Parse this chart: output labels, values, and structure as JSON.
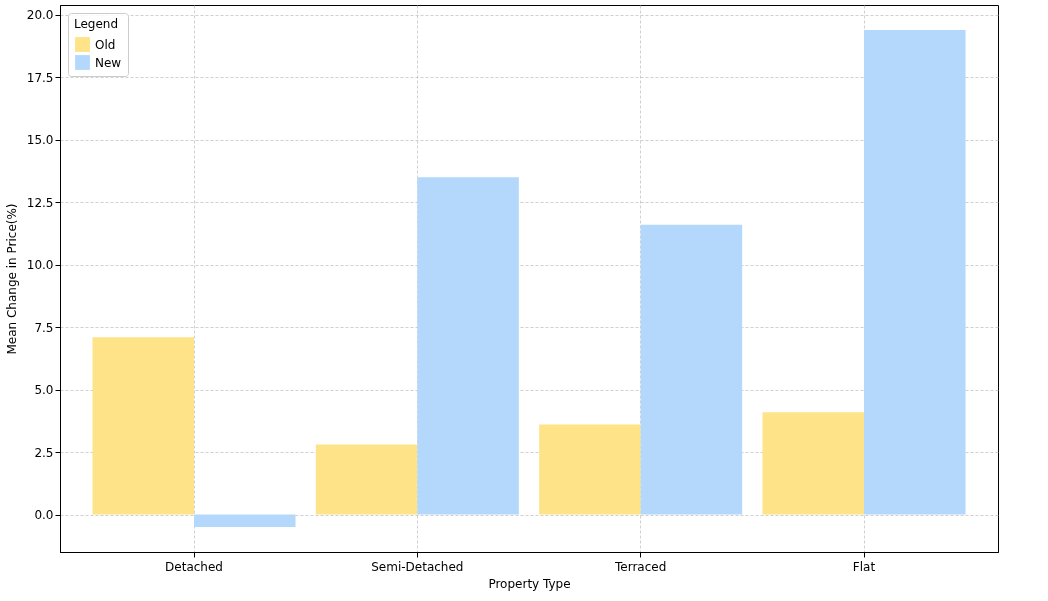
{
  "chart_data": {
    "type": "bar",
    "xlabel": "Property Type",
    "ylabel": "Mean Change in Price(%)",
    "legend_title": "Legend",
    "categories": [
      "Detached",
      "Semi-Detached",
      "Terraced",
      "Flat"
    ],
    "series": [
      {
        "name": "Old",
        "color": "#fee388",
        "values": [
          7.1,
          2.8,
          3.6,
          4.1
        ]
      },
      {
        "name": "New",
        "color": "#b3d8fc",
        "values": [
          -0.5,
          13.5,
          11.6,
          19.4
        ]
      }
    ],
    "ylim": [
      -1.5,
      20.4
    ],
    "yticks": [
      {
        "value": 0,
        "label": "0.0"
      },
      2.5,
      {
        "value": 5,
        "label": "5.0"
      },
      7.5,
      {
        "value": 10,
        "label": "10.0"
      },
      12.5,
      {
        "value": 15,
        "label": "15.0"
      },
      17.5,
      {
        "value": 20,
        "label": "20.0"
      }
    ],
    "grid": true,
    "legend": "top left"
  }
}
